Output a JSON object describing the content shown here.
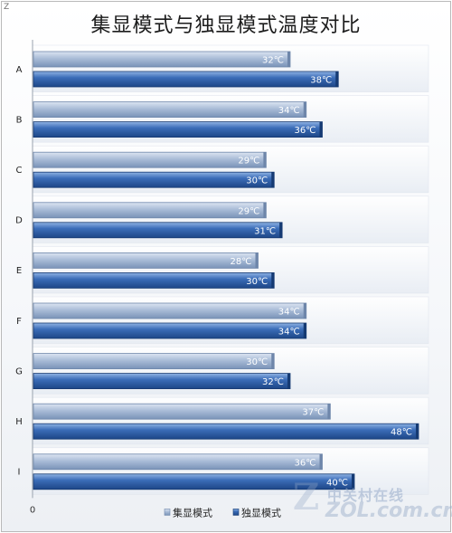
{
  "corner_mark": "Z",
  "watermark": {
    "cn_text": "中关村在线",
    "url_text": "ZOL.com.cn",
    "logo_letter": "Z"
  },
  "chart_data": {
    "type": "bar",
    "orientation": "horizontal",
    "title": "集显模式与独显模式温度对比",
    "categories": [
      "A",
      "B",
      "C",
      "D",
      "E",
      "F",
      "G",
      "H",
      "I"
    ],
    "series": [
      {
        "name": "集显模式",
        "color": "#8fa6c6",
        "values": [
          32,
          34,
          29,
          29,
          28,
          34,
          30,
          37,
          36
        ],
        "labels": [
          "32℃",
          "34℃",
          "29℃",
          "29℃",
          "28℃",
          "34℃",
          "30℃",
          "37℃",
          "36℃"
        ]
      },
      {
        "name": "独显模式",
        "color": "#2e5ea6",
        "values": [
          38,
          36,
          30,
          31,
          30,
          34,
          32,
          48,
          40
        ],
        "labels": [
          "38℃",
          "36℃",
          "30℃",
          "31℃",
          "30℃",
          "34℃",
          "32℃",
          "48℃",
          "40℃"
        ]
      }
    ],
    "x_tick_labels": [
      "0"
    ],
    "xlim": [
      0,
      48
    ],
    "legend_position": "bottom",
    "grid": false
  }
}
